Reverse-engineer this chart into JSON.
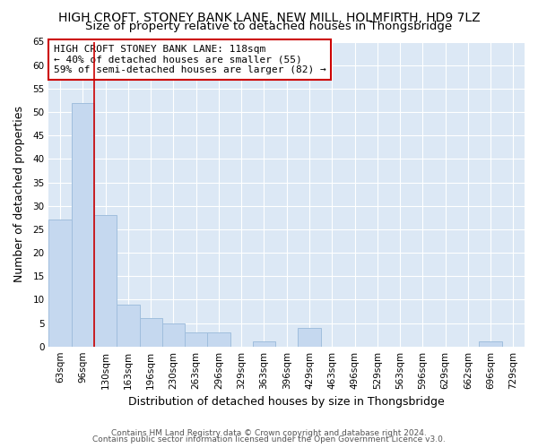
{
  "title": "HIGH CROFT, STONEY BANK LANE, NEW MILL, HOLMFIRTH, HD9 7LZ",
  "subtitle": "Size of property relative to detached houses in Thongsbridge",
  "xlabel": "Distribution of detached houses by size in Thongsbridge",
  "ylabel": "Number of detached properties",
  "footer_line1": "Contains HM Land Registry data © Crown copyright and database right 2024.",
  "footer_line2": "Contains public sector information licensed under the Open Government Licence v3.0.",
  "bar_labels": [
    "63sqm",
    "96sqm",
    "130sqm",
    "163sqm",
    "196sqm",
    "230sqm",
    "263sqm",
    "296sqm",
    "329sqm",
    "363sqm",
    "396sqm",
    "429sqm",
    "463sqm",
    "496sqm",
    "529sqm",
    "563sqm",
    "596sqm",
    "629sqm",
    "662sqm",
    "696sqm",
    "729sqm"
  ],
  "bar_values": [
    27,
    52,
    28,
    9,
    6,
    5,
    3,
    3,
    0,
    1,
    0,
    4,
    0,
    0,
    0,
    0,
    0,
    0,
    0,
    1,
    0
  ],
  "bar_color": "#c5d8ef",
  "bar_edge_color": "#a0bedd",
  "vline_color": "#cc0000",
  "ylim": [
    0,
    65
  ],
  "yticks": [
    0,
    5,
    10,
    15,
    20,
    25,
    30,
    35,
    40,
    45,
    50,
    55,
    60,
    65
  ],
  "annotation_text": "HIGH CROFT STONEY BANK LANE: 118sqm\n← 40% of detached houses are smaller (55)\n59% of semi-detached houses are larger (82) →",
  "fig_bg_color": "#ffffff",
  "plot_bg_color": "#dce8f5",
  "grid_color": "#ffffff",
  "title_fontsize": 10,
  "subtitle_fontsize": 9.5,
  "xlabel_fontsize": 9,
  "ylabel_fontsize": 9,
  "annotation_fontsize": 8,
  "tick_fontsize": 7.5,
  "footer_fontsize": 6.5
}
